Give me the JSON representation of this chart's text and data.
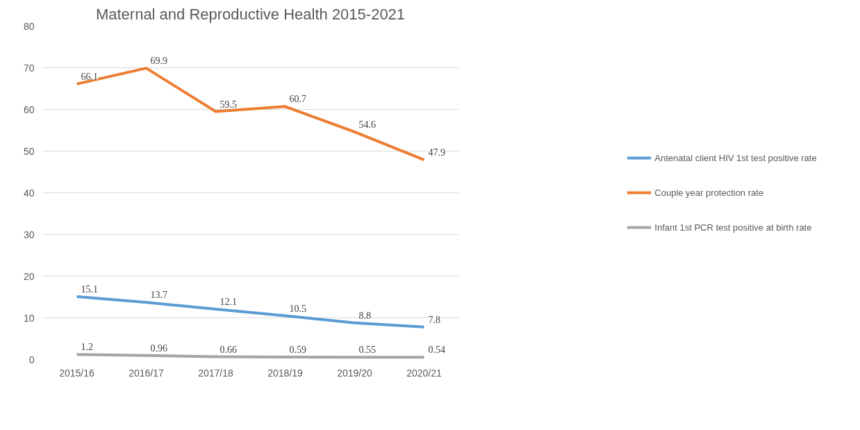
{
  "chart_data": {
    "type": "line",
    "title": "Maternal and Reproductive Health 2015-2021",
    "categories": [
      "2015/16",
      "2016/17",
      "2017/18",
      "2018/19",
      "2019/20",
      "2020/21"
    ],
    "series": [
      {
        "name": "Antenatal client HIV 1st test positive rate",
        "color": "#5b9bd5",
        "values": [
          15.1,
          13.7,
          12.1,
          10.5,
          8.8,
          7.8
        ]
      },
      {
        "name": "Couple year protection rate",
        "color": "#ed7d31",
        "values": [
          66.1,
          69.9,
          59.5,
          60.7,
          54.6,
          47.9
        ]
      },
      {
        "name": "Infant 1st PCR test positive at birth rate",
        "color": "#a5a5a5",
        "values": [
          1.2,
          0.96,
          0.66,
          0.59,
          0.55,
          0.54
        ]
      }
    ],
    "ylim": [
      0,
      80
    ],
    "yticks": [
      0,
      10,
      20,
      30,
      40,
      50,
      60,
      70,
      80
    ],
    "grid": "y",
    "legend": "right",
    "data_labels": true,
    "marker": "none",
    "line_style": "solid"
  }
}
